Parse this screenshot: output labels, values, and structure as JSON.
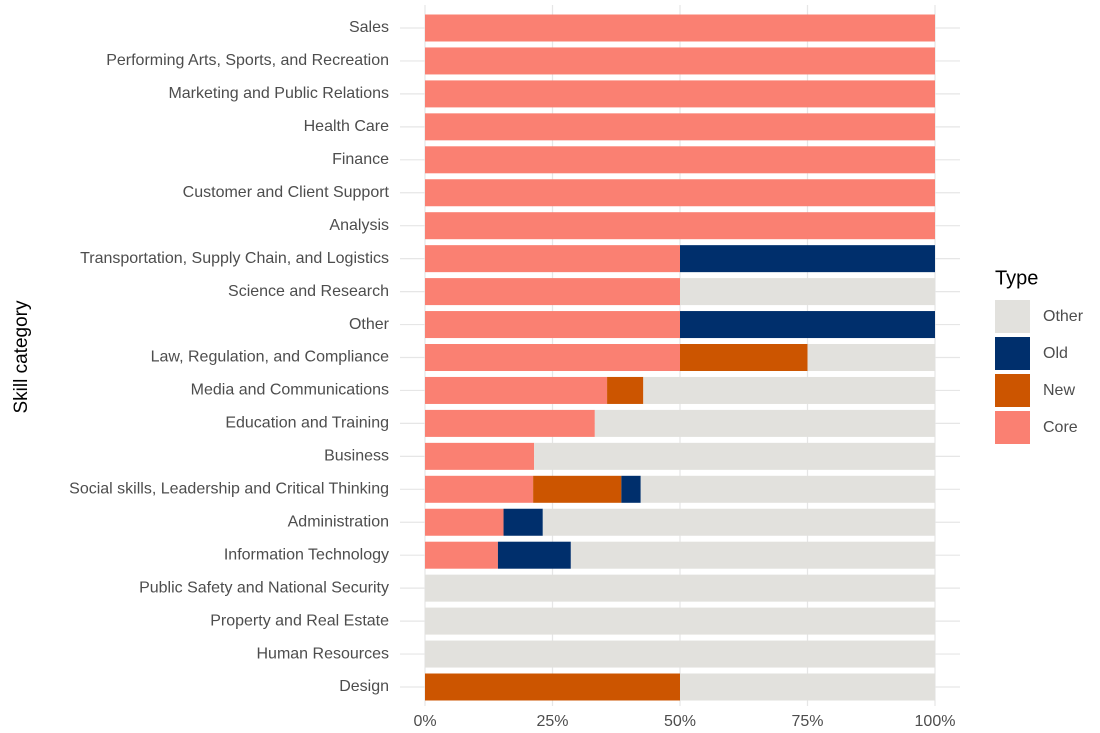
{
  "chart_data": {
    "type": "stacked_bar_horizontal",
    "y_label": "Skill category",
    "legend_title": "Type",
    "categories": [
      "Sales",
      "Performing Arts, Sports, and Recreation",
      "Marketing and Public Relations",
      "Health Care",
      "Finance",
      "Customer and Client Support",
      "Analysis",
      "Transportation, Supply Chain, and Logistics",
      "Science and Research",
      "Other",
      "Law, Regulation, and Compliance",
      "Media and Communications",
      "Education and Training",
      "Business",
      "Social skills, Leadership and Critical Thinking",
      "Administration",
      "Information Technology",
      "Public Safety and National Security",
      "Property and Real Estate",
      "Human Resources",
      "Design"
    ],
    "series": [
      {
        "name": "Core",
        "color": "#fa8072",
        "values": [
          100,
          100,
          100,
          100,
          100,
          100,
          100,
          50,
          50,
          50,
          50,
          35.7,
          33.3,
          21.4,
          21.2,
          15.4,
          14.3,
          0,
          0,
          0,
          0
        ]
      },
      {
        "name": "New",
        "color": "#cc5500",
        "values": [
          0,
          0,
          0,
          0,
          0,
          0,
          0,
          0,
          0,
          0,
          25,
          7.1,
          0,
          0,
          17.3,
          0,
          0,
          0,
          0,
          0,
          50
        ]
      },
      {
        "name": "Old",
        "color": "#002f6c",
        "values": [
          0,
          0,
          0,
          0,
          0,
          0,
          0,
          50,
          0,
          50,
          0,
          0,
          0,
          0,
          3.8,
          7.7,
          14.3,
          0,
          0,
          0,
          0
        ]
      },
      {
        "name": "Other",
        "color": "#e2e1dd",
        "values": [
          0,
          0,
          0,
          0,
          0,
          0,
          0,
          0,
          50,
          0,
          25,
          57.2,
          66.7,
          78.6,
          57.7,
          76.9,
          71.4,
          100,
          100,
          100,
          50
        ]
      }
    ],
    "xlim": [
      0,
      100
    ],
    "xticks": [
      {
        "value": 0,
        "label": "0%"
      },
      {
        "value": 25,
        "label": "25%"
      },
      {
        "value": 50,
        "label": "50%"
      },
      {
        "value": 75,
        "label": "75%"
      },
      {
        "value": 100,
        "label": "100%"
      }
    ],
    "grid": true,
    "legend_position": "right"
  }
}
